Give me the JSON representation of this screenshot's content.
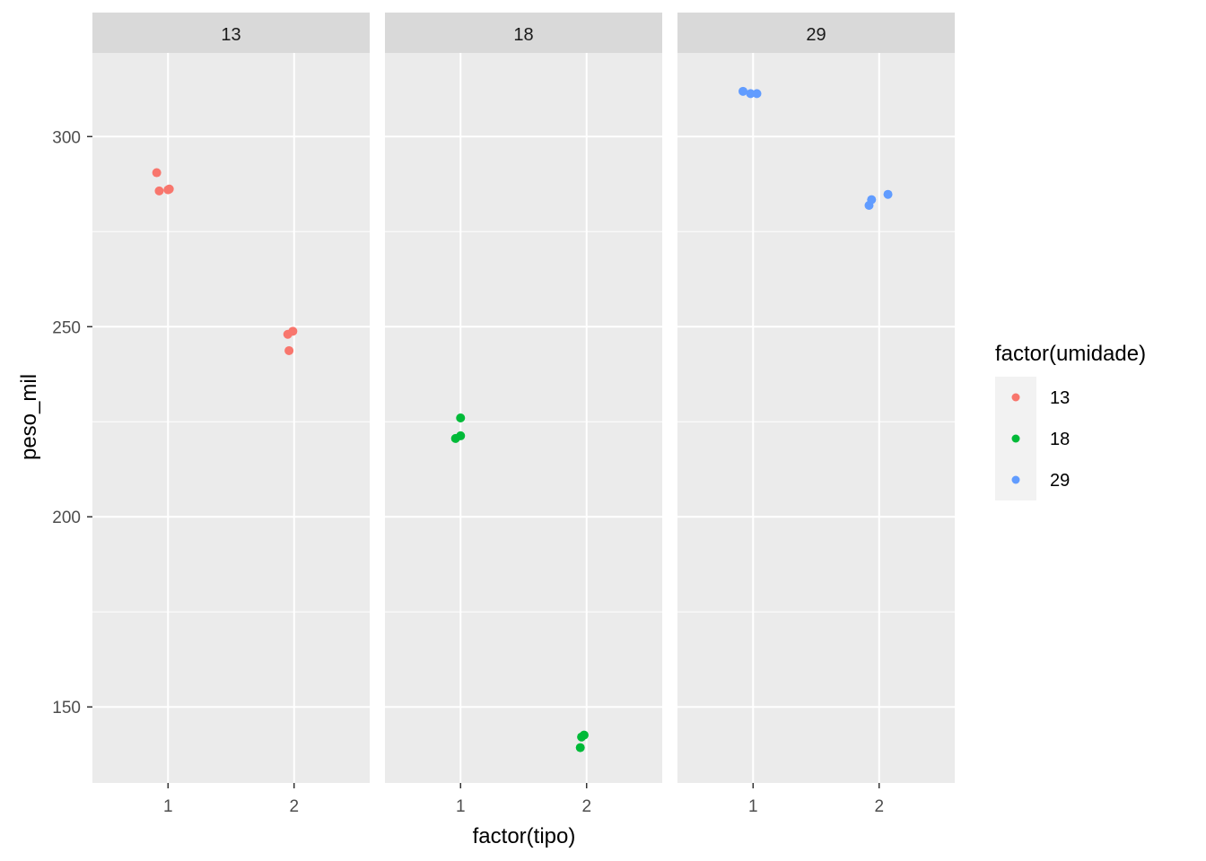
{
  "chart_data": {
    "type": "scatter",
    "title": "",
    "xlabel": "factor(tipo)",
    "ylabel": "peso_mil",
    "facet_labels": [
      "13",
      "18",
      "29"
    ],
    "x_categories": [
      "1",
      "2"
    ],
    "ylim": [
      130,
      322
    ],
    "y_ticks": [
      150,
      200,
      250,
      300
    ],
    "y_tick_labels": [
      "150",
      "200",
      "250",
      "300"
    ],
    "grid": true,
    "legend": {
      "title": "factor(umidade)",
      "position": "right",
      "entries": [
        {
          "label": "13",
          "color": "#F8766D"
        },
        {
          "label": "18",
          "color": "#00BA38"
        },
        {
          "label": "29",
          "color": "#619CFF"
        }
      ]
    },
    "facets": [
      {
        "facet": "13",
        "color": "#F8766D",
        "points": [
          {
            "x": 0.91,
            "y": 290.5
          },
          {
            "x": 0.93,
            "y": 285.7
          },
          {
            "x": 1.01,
            "y": 286.2
          },
          {
            "x": 1.0,
            "y": 286.0
          },
          {
            "x": 1.95,
            "y": 248.0
          },
          {
            "x": 1.99,
            "y": 248.8
          },
          {
            "x": 1.96,
            "y": 243.7
          }
        ]
      },
      {
        "facet": "18",
        "color": "#00BA38",
        "points": [
          {
            "x": 1.0,
            "y": 226.0
          },
          {
            "x": 0.96,
            "y": 220.6
          },
          {
            "x": 1.0,
            "y": 221.3
          },
          {
            "x": 1.96,
            "y": 142.1
          },
          {
            "x": 1.98,
            "y": 142.6
          },
          {
            "x": 1.95,
            "y": 139.3
          }
        ]
      },
      {
        "facet": "29",
        "color": "#619CFF",
        "points": [
          {
            "x": 0.92,
            "y": 311.9
          },
          {
            "x": 0.98,
            "y": 311.3
          },
          {
            "x": 1.03,
            "y": 311.3
          },
          {
            "x": 1.92,
            "y": 281.9
          },
          {
            "x": 1.94,
            "y": 283.4
          },
          {
            "x": 2.07,
            "y": 284.8
          }
        ]
      }
    ]
  }
}
